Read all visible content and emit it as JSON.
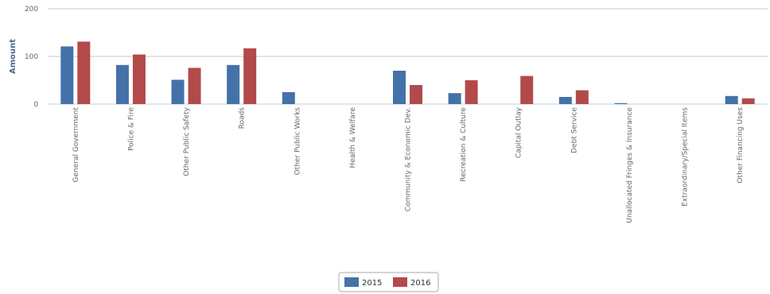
{
  "chart_data": {
    "type": "bar",
    "ylabel": "Amount",
    "ylim": [
      0,
      200
    ],
    "yticks": [
      0,
      100,
      200
    ],
    "grid": true,
    "legend": "bottom-center",
    "categories": [
      "General Government",
      "Police & Fire",
      "Other Public Safety",
      "Roads",
      "Other Public Works",
      "Health & Welfare",
      "Community & Economic Dev.",
      "Recreation & Culture",
      "Capital Outlay",
      "Debt Service",
      "Unallocated Fringes & Insurance",
      "Extraordinary/Special Items",
      "Other Financing Uses"
    ],
    "series": [
      {
        "name": "2015",
        "color": "#4472a8",
        "values": [
          121,
          82,
          51,
          82,
          25,
          0,
          70,
          23,
          0,
          15,
          2,
          0,
          17
        ]
      },
      {
        "name": "2016",
        "color": "#b34a4a",
        "values": [
          131,
          104,
          76,
          117,
          0,
          0,
          40,
          50,
          59,
          29,
          0,
          0,
          12
        ]
      }
    ]
  }
}
